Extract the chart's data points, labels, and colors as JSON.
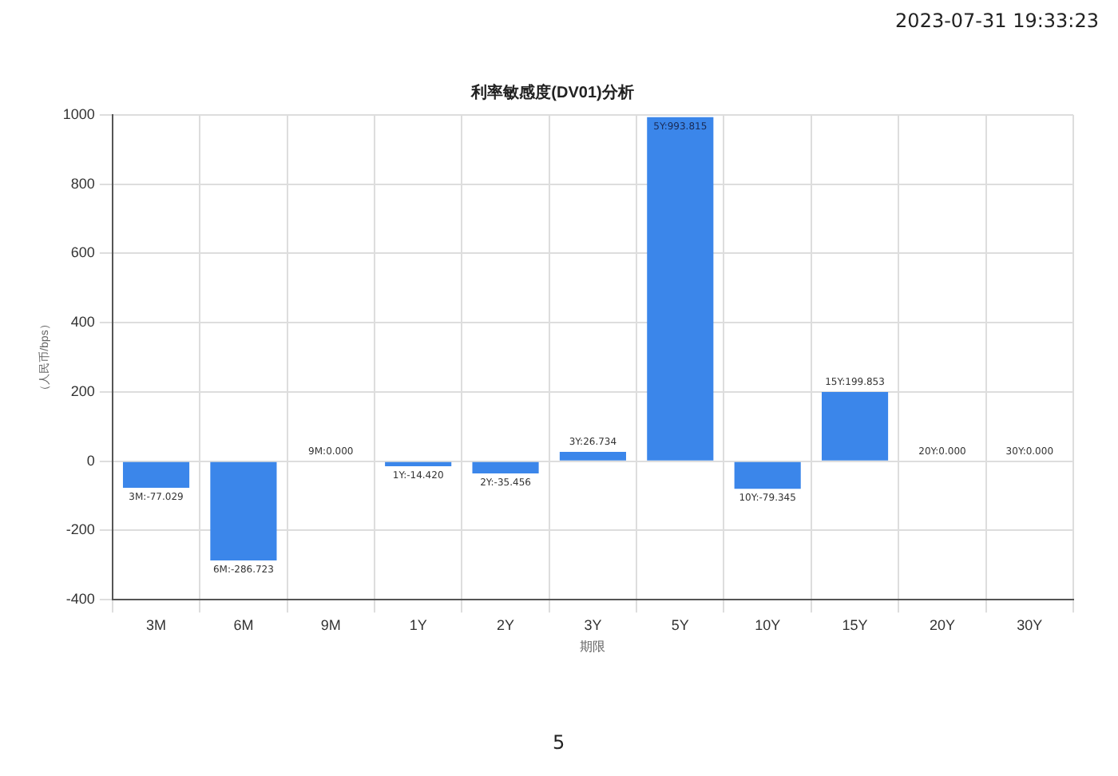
{
  "chart_data": {
    "type": "bar",
    "title": "利率敏感度(DV01)分析",
    "xlabel": "期限",
    "ylabel": "（人民币/bps）",
    "categories": [
      "3M",
      "6M",
      "9M",
      "1Y",
      "2Y",
      "3Y",
      "5Y",
      "10Y",
      "15Y",
      "20Y",
      "30Y"
    ],
    "values": [
      -77.029,
      -286.723,
      0.0,
      -14.42,
      -35.456,
      26.734,
      993.815,
      -79.345,
      199.853,
      0.0,
      0.0
    ],
    "value_labels": [
      "3M:-77.029",
      "6M:-286.723",
      "9M:0.000",
      "1Y:-14.420",
      "2Y:-35.456",
      "3Y:26.734",
      "5Y:993.815",
      "10Y:-79.345",
      "15Y:199.853",
      "20Y:0.000",
      "30Y:0.000"
    ],
    "color": "#3b86ea",
    "ylim": [
      -400,
      1000
    ],
    "yticks": [
      -400,
      -200,
      0,
      200,
      400,
      600,
      800,
      1000
    ],
    "grid": true,
    "legend": false,
    "annotations": [
      "2023-07-31 19:33:23",
      "5"
    ]
  }
}
